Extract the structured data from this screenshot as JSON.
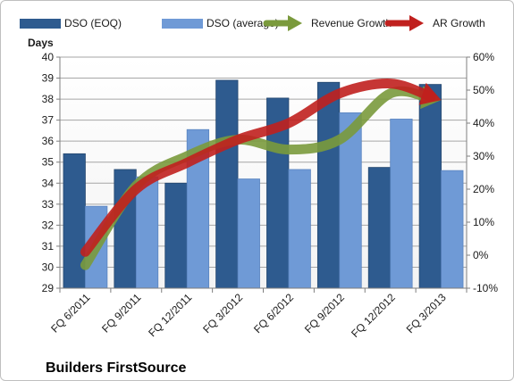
{
  "chart_data": {
    "type": "bar",
    "caption": "Builders FirstSource",
    "y_left_label": "Days",
    "categories": [
      "FQ 6/2011",
      "FQ 9/2011",
      "FQ 12/2011",
      "FQ 3/2012",
      "FQ 6/2012",
      "FQ 9/2012",
      "FQ 12/2012",
      "FQ 3/2013"
    ],
    "ylim_left": [
      29,
      40
    ],
    "ylim_right": [
      -10,
      60
    ],
    "left_ticks": [
      "29",
      "30",
      "31",
      "32",
      "33",
      "34",
      "35",
      "36",
      "37",
      "38",
      "39",
      "40"
    ],
    "right_ticks": [
      "-10%",
      "0%",
      "10%",
      "20%",
      "30%",
      "40%",
      "50%",
      "60%"
    ],
    "grid": "horizontal",
    "legend_position": "top",
    "series": [
      {
        "name": "DSO (EOQ)",
        "type": "bar",
        "axis": "left",
        "color": "#2e5b8f",
        "values": [
          35.4,
          34.65,
          34.0,
          38.9,
          38.05,
          38.8,
          34.75,
          38.7
        ]
      },
      {
        "name": "DSO (average)",
        "type": "bar",
        "axis": "left",
        "color": "#6f9ad6",
        "values": [
          32.9,
          34.3,
          36.55,
          34.2,
          34.65,
          37.35,
          37.05,
          34.6
        ]
      },
      {
        "name": "Revenue Growth",
        "type": "line",
        "axis": "right",
        "color": "#7a9a3c",
        "values": [
          -3,
          21,
          30,
          35,
          32,
          35,
          49,
          47
        ]
      },
      {
        "name": "AR Growth",
        "type": "line",
        "axis": "right",
        "color": "#c0201e",
        "values": [
          1,
          20,
          28,
          35,
          40,
          49,
          52,
          47
        ]
      }
    ]
  }
}
